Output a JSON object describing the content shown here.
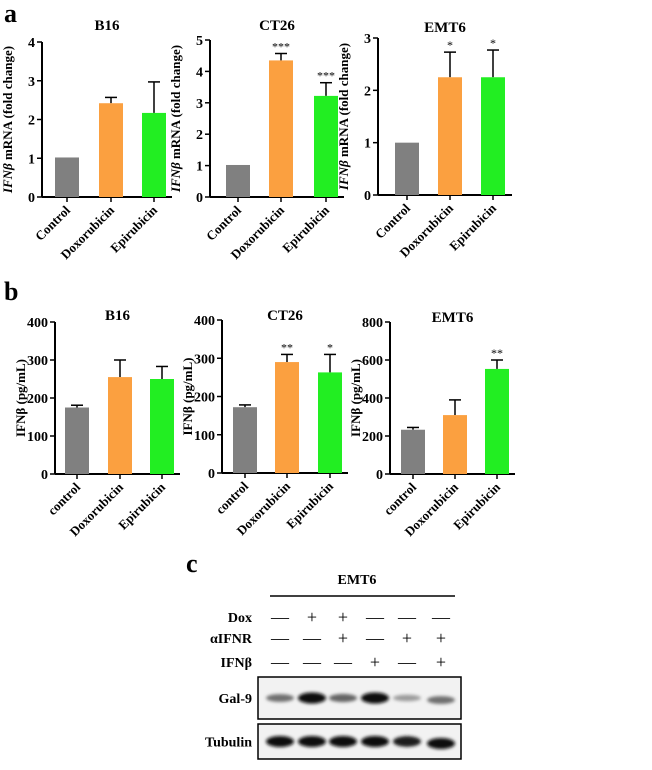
{
  "panel_labels": {
    "a": "a",
    "b": "b",
    "c": "c"
  },
  "colors": {
    "control": "#808080",
    "doxorubicin": "#FBA040",
    "epirubicin": "#22EE22",
    "axis": "#000000"
  },
  "chart_data": [
    {
      "id": "a-b16",
      "type": "bar",
      "title": "B16",
      "ylabel_italic": "IFNβ",
      "ylabel_rest": " mRNA (fold change)",
      "ylim": [
        0,
        4
      ],
      "yticks": [
        "0",
        "1",
        "2",
        "3",
        "4"
      ],
      "categories": [
        "Control",
        "Doxorubicin",
        "Epirubicin"
      ],
      "values": [
        1.02,
        2.42,
        2.17
      ],
      "errors": [
        0,
        0.15,
        0.8
      ],
      "significance": [
        "",
        "",
        ""
      ]
    },
    {
      "id": "a-ct26",
      "type": "bar",
      "title": "CT26",
      "ylabel_italic": "IFNβ",
      "ylabel_rest": " mRNA (fold change)",
      "ylim": [
        0,
        5
      ],
      "yticks": [
        "0",
        "1",
        "2",
        "3",
        "4",
        "5"
      ],
      "categories": [
        "Control",
        "Doxorubicin",
        "Epirubicin"
      ],
      "values": [
        1.02,
        4.35,
        3.22
      ],
      "errors": [
        0,
        0.22,
        0.42
      ],
      "significance": [
        "",
        "***",
        "***"
      ]
    },
    {
      "id": "a-emt6",
      "type": "bar",
      "title": "EMT6",
      "ylabel_italic": "IFNβ",
      "ylabel_rest": " mRNA (fold change)",
      "ylim": [
        0,
        3
      ],
      "yticks": [
        "0",
        "1",
        "2",
        "3"
      ],
      "categories": [
        "Control",
        "Doxorubicin",
        "Epirubicin"
      ],
      "values": [
        1.0,
        2.25,
        2.25
      ],
      "errors": [
        0,
        0.48,
        0.52
      ],
      "significance": [
        "",
        "*",
        "*"
      ]
    },
    {
      "id": "b-b16",
      "type": "bar",
      "title": "B16",
      "ylabel_italic": "",
      "ylabel_rest": "IFNβ (pg/mL)",
      "ylim": [
        0,
        400
      ],
      "yticks": [
        "0",
        "100",
        "200",
        "300",
        "400"
      ],
      "categories": [
        "control",
        "Doxorubicin",
        "Epirubicin"
      ],
      "values": [
        175,
        255,
        250
      ],
      "errors": [
        6,
        45,
        33
      ],
      "significance": [
        "",
        "",
        ""
      ]
    },
    {
      "id": "b-ct26",
      "type": "bar",
      "title": "CT26",
      "ylabel_italic": "",
      "ylabel_rest": "IFNβ (pg/mL)",
      "ylim": [
        0,
        400
      ],
      "yticks": [
        "0",
        "100",
        "200",
        "300",
        "400"
      ],
      "categories": [
        "control",
        "Doxorubicin",
        "Epirubicin"
      ],
      "values": [
        172,
        290,
        263
      ],
      "errors": [
        6,
        20,
        47
      ],
      "significance": [
        "",
        "**",
        "*"
      ]
    },
    {
      "id": "b-emt6",
      "type": "bar",
      "title": "EMT6",
      "ylabel_italic": "",
      "ylabel_rest": "IFNβ (pg/mL)",
      "ylim": [
        0,
        800
      ],
      "yticks": [
        "0",
        "200",
        "400",
        "600",
        "800"
      ],
      "categories": [
        "control",
        "Doxorubicin",
        "Epirubicin"
      ],
      "values": [
        233,
        310,
        553
      ],
      "errors": [
        12,
        80,
        47
      ],
      "significance": [
        "",
        "",
        "**"
      ]
    }
  ],
  "blot": {
    "title": "EMT6",
    "conditions": [
      {
        "label": "Dox",
        "values": [
          "—",
          "+",
          "+",
          "—",
          "—",
          "—"
        ]
      },
      {
        "label": "αIFNR",
        "values": [
          "—",
          "—",
          "+",
          "—",
          "+",
          "+"
        ]
      },
      {
        "label": "IFNβ",
        "values": [
          "—",
          "—",
          "—",
          "+",
          "—",
          "+"
        ]
      }
    ],
    "bands": [
      {
        "label": "Gal-9",
        "intensity": [
          0.55,
          1.0,
          0.6,
          1.0,
          0.35,
          0.55
        ]
      },
      {
        "label": "Tubulin",
        "intensity": [
          1.0,
          1.0,
          1.0,
          1.0,
          0.95,
          1.0
        ]
      }
    ]
  }
}
